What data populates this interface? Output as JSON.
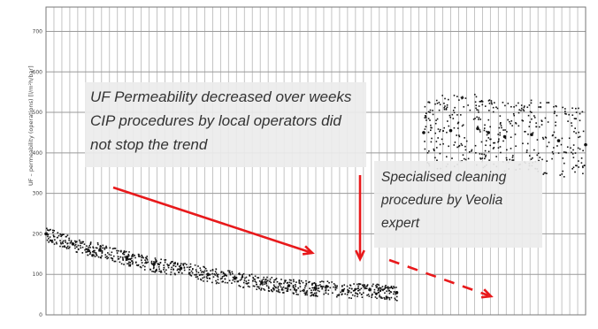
{
  "chart_data": {
    "type": "scatter",
    "ylabel": "UF – permeability (operations) [l/m²h/bar]",
    "yticks": [
      0,
      100,
      200,
      300,
      400,
      500,
      600,
      700
    ],
    "ylim": [
      0,
      760
    ],
    "grid": true,
    "series": [
      {
        "x": [
          0,
          0.05,
          0.1,
          0.15,
          0.2,
          0.25,
          0.3,
          0.35,
          0.4,
          0.45,
          0.5,
          0.52,
          0.55,
          0.6,
          0.65,
          0.7,
          0.75,
          0.8,
          0.82,
          0.85,
          0.9,
          0.95,
          1.0
        ],
        "y": [
          200,
          175,
          160,
          140,
          125,
          115,
          100,
          90,
          80,
          72,
          65,
          70,
          60,
          62,
          55,
          450,
          455,
          460,
          450,
          440,
          445,
          430,
          420
        ]
      }
    ],
    "annotations": [
      {
        "lines": [
          "UF Permeability decreased over weeks",
          "CIP procedures by local operators did",
          "not stop the trend"
        ]
      },
      {
        "lines": [
          "Specialised cleaning",
          "procedure by Veolia",
          "expert"
        ]
      }
    ],
    "colors": {
      "points": "#111111",
      "arrow": "#e8191b",
      "callout_bg": "#ececec",
      "grid": "#b5b5b5"
    }
  }
}
